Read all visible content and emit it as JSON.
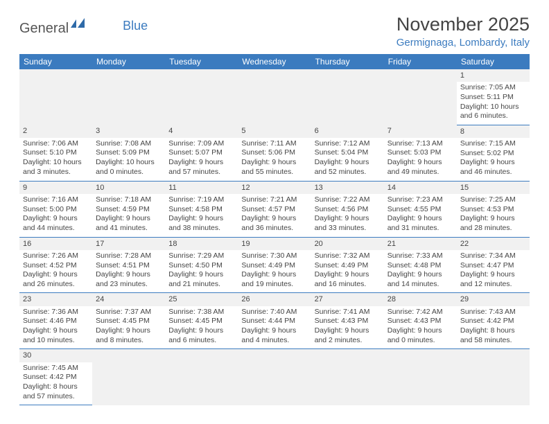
{
  "logo": {
    "text1": "General",
    "text2": "Blue"
  },
  "title": "November 2025",
  "location": "Germignaga, Lombardy, Italy",
  "colors": {
    "header_bg": "#3b7bbf",
    "header_text": "#ffffff",
    "blank_bg": "#f1f1f1",
    "rule": "#3b7bbf",
    "logo_blue": "#3b7bbf",
    "body_text": "#444444"
  },
  "weekdays": [
    "Sunday",
    "Monday",
    "Tuesday",
    "Wednesday",
    "Thursday",
    "Friday",
    "Saturday"
  ],
  "first_weekday_index": 6,
  "days": [
    {
      "n": 1,
      "sunrise": "7:05 AM",
      "sunset": "5:11 PM",
      "daylight": "10 hours and 6 minutes."
    },
    {
      "n": 2,
      "sunrise": "7:06 AM",
      "sunset": "5:10 PM",
      "daylight": "10 hours and 3 minutes."
    },
    {
      "n": 3,
      "sunrise": "7:08 AM",
      "sunset": "5:09 PM",
      "daylight": "10 hours and 0 minutes."
    },
    {
      "n": 4,
      "sunrise": "7:09 AM",
      "sunset": "5:07 PM",
      "daylight": "9 hours and 57 minutes."
    },
    {
      "n": 5,
      "sunrise": "7:11 AM",
      "sunset": "5:06 PM",
      "daylight": "9 hours and 55 minutes."
    },
    {
      "n": 6,
      "sunrise": "7:12 AM",
      "sunset": "5:04 PM",
      "daylight": "9 hours and 52 minutes."
    },
    {
      "n": 7,
      "sunrise": "7:13 AM",
      "sunset": "5:03 PM",
      "daylight": "9 hours and 49 minutes."
    },
    {
      "n": 8,
      "sunrise": "7:15 AM",
      "sunset": "5:02 PM",
      "daylight": "9 hours and 46 minutes."
    },
    {
      "n": 9,
      "sunrise": "7:16 AM",
      "sunset": "5:00 PM",
      "daylight": "9 hours and 44 minutes."
    },
    {
      "n": 10,
      "sunrise": "7:18 AM",
      "sunset": "4:59 PM",
      "daylight": "9 hours and 41 minutes."
    },
    {
      "n": 11,
      "sunrise": "7:19 AM",
      "sunset": "4:58 PM",
      "daylight": "9 hours and 38 minutes."
    },
    {
      "n": 12,
      "sunrise": "7:21 AM",
      "sunset": "4:57 PM",
      "daylight": "9 hours and 36 minutes."
    },
    {
      "n": 13,
      "sunrise": "7:22 AM",
      "sunset": "4:56 PM",
      "daylight": "9 hours and 33 minutes."
    },
    {
      "n": 14,
      "sunrise": "7:23 AM",
      "sunset": "4:55 PM",
      "daylight": "9 hours and 31 minutes."
    },
    {
      "n": 15,
      "sunrise": "7:25 AM",
      "sunset": "4:53 PM",
      "daylight": "9 hours and 28 minutes."
    },
    {
      "n": 16,
      "sunrise": "7:26 AM",
      "sunset": "4:52 PM",
      "daylight": "9 hours and 26 minutes."
    },
    {
      "n": 17,
      "sunrise": "7:28 AM",
      "sunset": "4:51 PM",
      "daylight": "9 hours and 23 minutes."
    },
    {
      "n": 18,
      "sunrise": "7:29 AM",
      "sunset": "4:50 PM",
      "daylight": "9 hours and 21 minutes."
    },
    {
      "n": 19,
      "sunrise": "7:30 AM",
      "sunset": "4:49 PM",
      "daylight": "9 hours and 19 minutes."
    },
    {
      "n": 20,
      "sunrise": "7:32 AM",
      "sunset": "4:49 PM",
      "daylight": "9 hours and 16 minutes."
    },
    {
      "n": 21,
      "sunrise": "7:33 AM",
      "sunset": "4:48 PM",
      "daylight": "9 hours and 14 minutes."
    },
    {
      "n": 22,
      "sunrise": "7:34 AM",
      "sunset": "4:47 PM",
      "daylight": "9 hours and 12 minutes."
    },
    {
      "n": 23,
      "sunrise": "7:36 AM",
      "sunset": "4:46 PM",
      "daylight": "9 hours and 10 minutes."
    },
    {
      "n": 24,
      "sunrise": "7:37 AM",
      "sunset": "4:45 PM",
      "daylight": "9 hours and 8 minutes."
    },
    {
      "n": 25,
      "sunrise": "7:38 AM",
      "sunset": "4:45 PM",
      "daylight": "9 hours and 6 minutes."
    },
    {
      "n": 26,
      "sunrise": "7:40 AM",
      "sunset": "4:44 PM",
      "daylight": "9 hours and 4 minutes."
    },
    {
      "n": 27,
      "sunrise": "7:41 AM",
      "sunset": "4:43 PM",
      "daylight": "9 hours and 2 minutes."
    },
    {
      "n": 28,
      "sunrise": "7:42 AM",
      "sunset": "4:43 PM",
      "daylight": "9 hours and 0 minutes."
    },
    {
      "n": 29,
      "sunrise": "7:43 AM",
      "sunset": "4:42 PM",
      "daylight": "8 hours and 58 minutes."
    },
    {
      "n": 30,
      "sunrise": "7:45 AM",
      "sunset": "4:42 PM",
      "daylight": "8 hours and 57 minutes."
    }
  ],
  "labels": {
    "sunrise": "Sunrise:",
    "sunset": "Sunset:",
    "daylight": "Daylight:"
  }
}
